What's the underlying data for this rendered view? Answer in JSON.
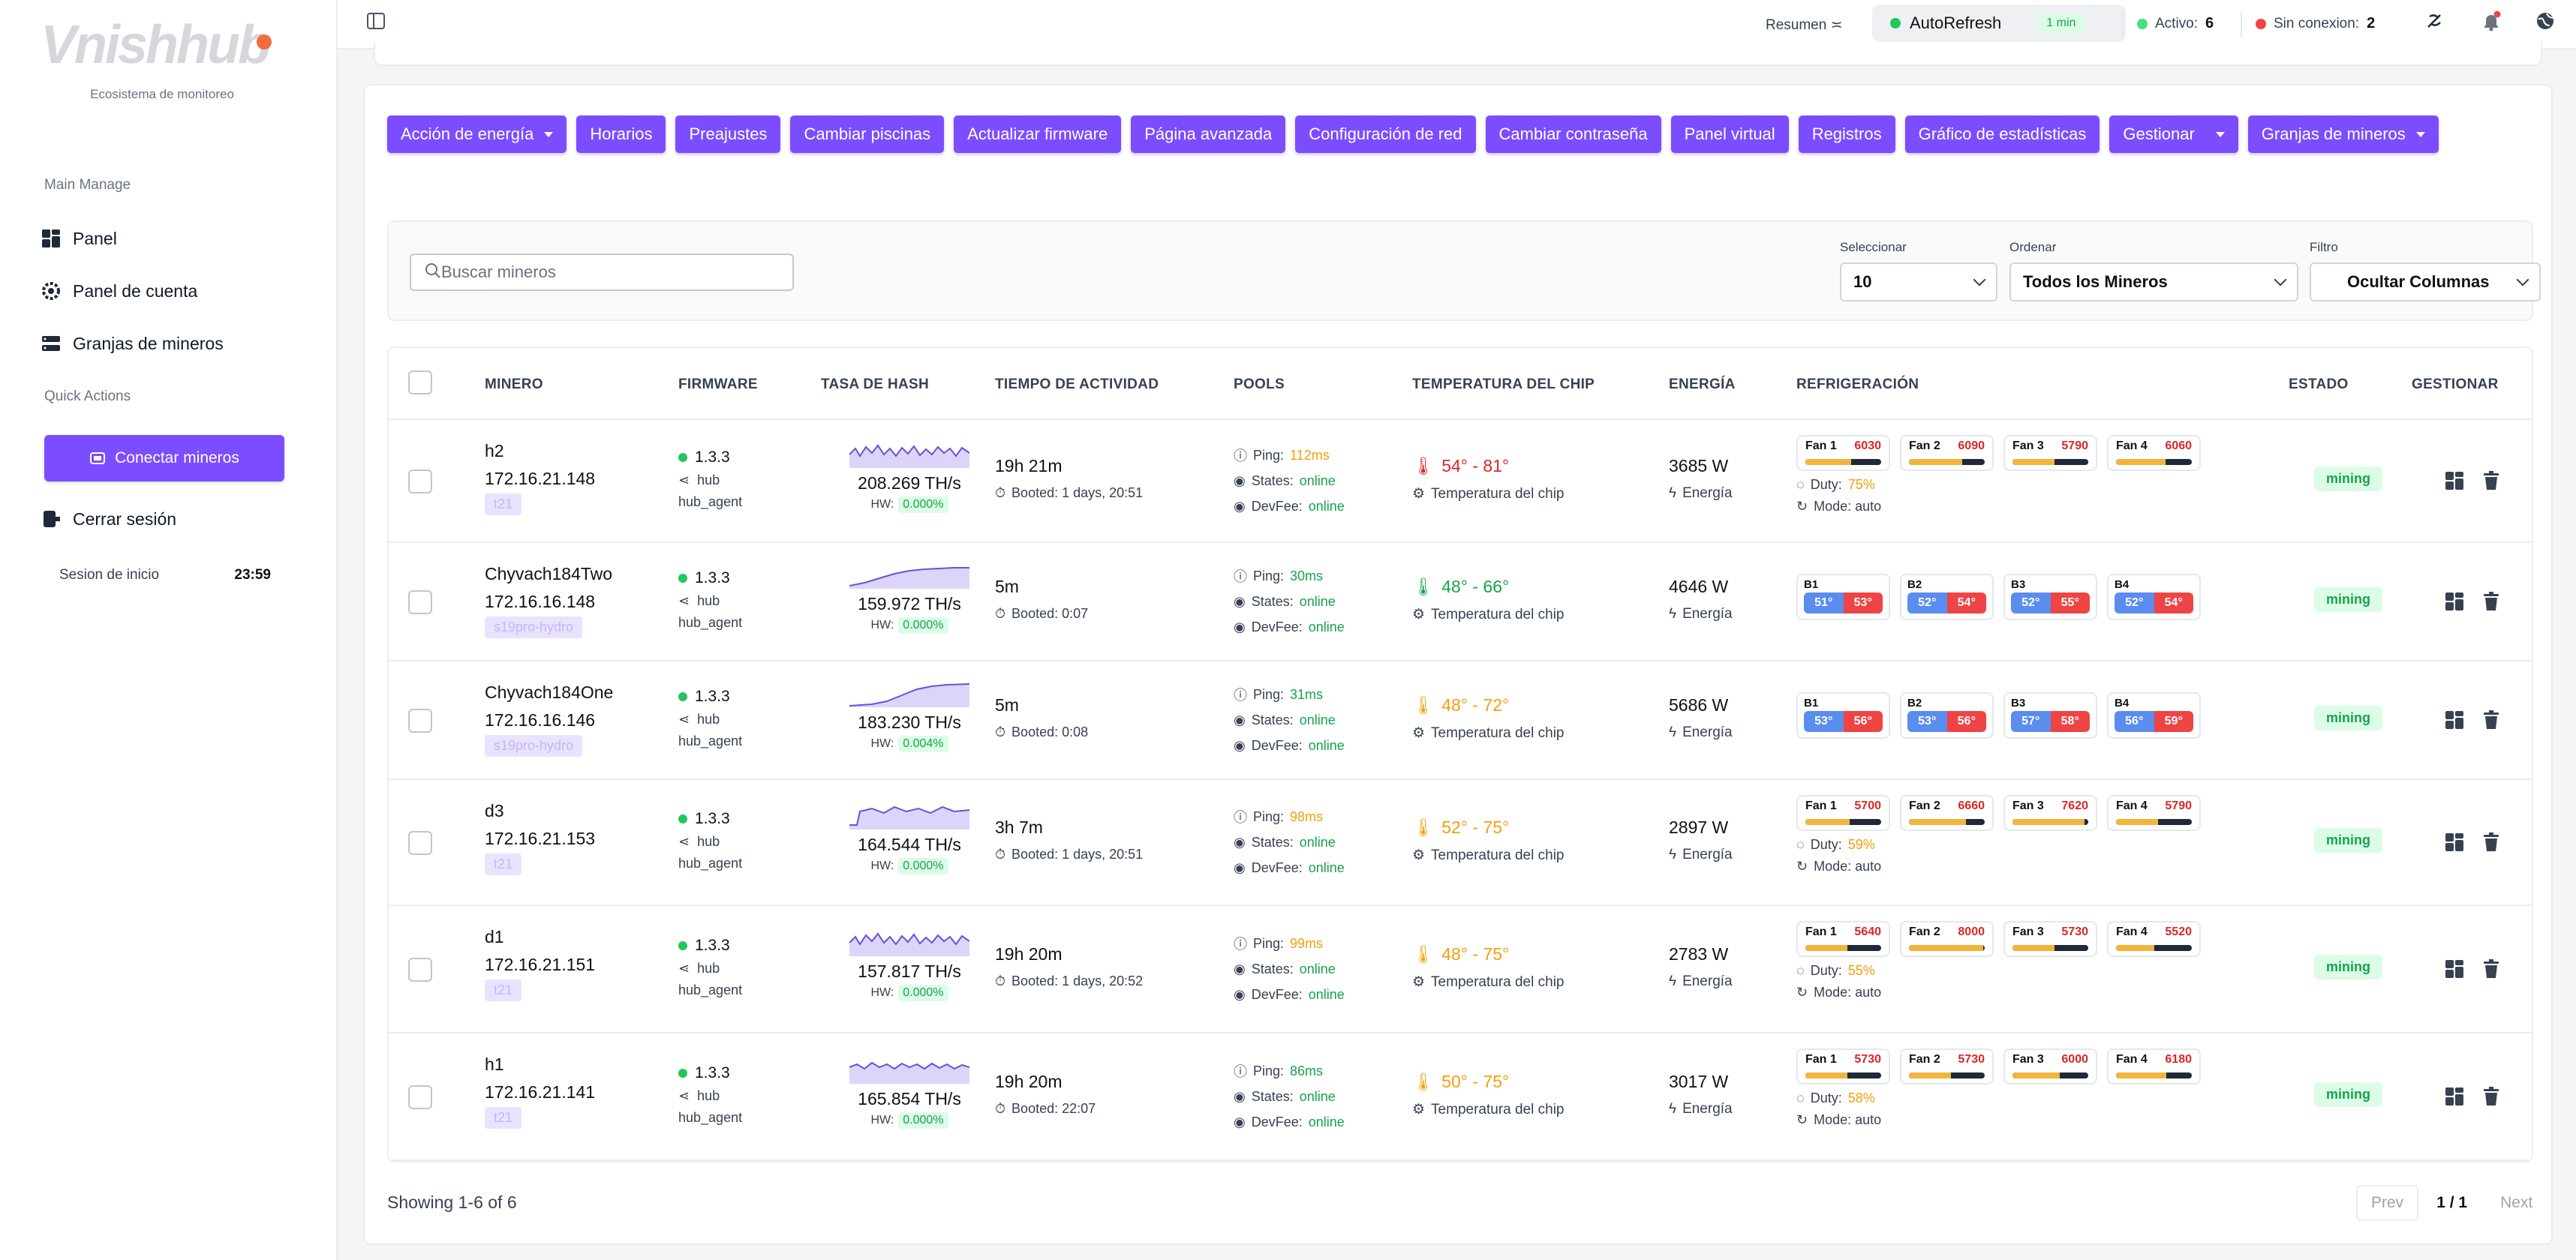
{
  "sidebar": {
    "logo_part1": "Vnish",
    "logo_part2": "hub",
    "tagline": "Ecosistema de monitoreo",
    "section_main": "Main Manage",
    "items": [
      {
        "label": "Panel"
      },
      {
        "label": "Panel de cuenta"
      },
      {
        "label": "Granjas de mineros"
      }
    ],
    "section_quick": "Quick Actions",
    "connect_label": "Conectar mineros",
    "logout_label": "Cerrar sesión",
    "session_label": "Sesion de inicio",
    "session_time": "23:59"
  },
  "topbar": {
    "resumen": "Resumen",
    "autorefresh_label": "AutoRefresh",
    "autorefresh_interval": "1 min",
    "active_label": "Activo:",
    "active_count": "6",
    "offline_label": "Sin conexion:",
    "offline_count": "2"
  },
  "actions": [
    {
      "label": "Acción de energía",
      "dropdown": true
    },
    {
      "label": "Horarios"
    },
    {
      "label": "Preajustes"
    },
    {
      "label": "Cambiar piscinas"
    },
    {
      "label": "Actualizar firmware"
    },
    {
      "label": "Página avanzada"
    },
    {
      "label": "Configuración de red"
    },
    {
      "label": "Cambiar contraseña"
    },
    {
      "label": "Panel virtual"
    },
    {
      "label": "Registros"
    },
    {
      "label": "Gráfico de estadísticas"
    },
    {
      "label": "Gestionar",
      "dropdown": true
    },
    {
      "label": "Granjas de mineros",
      "dropdown": true
    }
  ],
  "filters": {
    "search_placeholder": "Buscar mineros",
    "select_label": "Seleccionar",
    "select_value": "10",
    "order_label": "Ordenar",
    "order_value": "Todos los Mineros",
    "filter_label": "Filtro",
    "filter_value": "Ocultar Columnas"
  },
  "columns": [
    "MINERO",
    "FIRMWARE",
    "TASA DE HASH",
    "TIEMPO DE ACTIVIDAD",
    "POOLS",
    "TEMPERATURA DEL CHIP",
    "ENERGÍA",
    "REFRIGERACIÓN",
    "ESTADO",
    "GESTIONAR"
  ],
  "labels": {
    "hub": "hub",
    "hub_agent": "hub_agent",
    "hw": "HW:",
    "ping": "Ping:",
    "states": "States:",
    "devfee": "DevFee:",
    "chip_temp": "Temperatura del chip",
    "energy": "Energía",
    "duty": "Duty:",
    "mode": "Mode: auto"
  },
  "miners": [
    {
      "name": "h2",
      "ip": "172.16.21.148",
      "tag": "t21",
      "fw": "1.3.3",
      "hashrate": "208.269 TH/s",
      "hw": "0.000%",
      "uptime": "19h 21m",
      "booted": "Booted: 1 days, 20:51",
      "ping": "112ms",
      "ping_color": "#f59e0b",
      "states": "online",
      "devfee": "online",
      "temp": "54° - 81°",
      "temp_color": "#dc2626",
      "power": "3685 W",
      "cooling": "fans",
      "fans": [
        {
          "l": "Fan 1",
          "v": "6030",
          "p": 0.6
        },
        {
          "l": "Fan 2",
          "v": "6090",
          "p": 0.7
        },
        {
          "l": "Fan 3",
          "v": "5790",
          "p": 0.55
        },
        {
          "l": "Fan 4",
          "v": "6060",
          "p": 0.65
        }
      ],
      "duty": "75%",
      "status": "mining",
      "spark": "noisy"
    },
    {
      "name": "Chyvach184Two",
      "ip": "172.16.16.148",
      "tag": "s19pro-hydro",
      "fw": "1.3.3",
      "hashrate": "159.972 TH/s",
      "hw": "0.000%",
      "uptime": "5m",
      "booted": "Booted: 0:07",
      "ping": "30ms",
      "ping_color": "#16a34a",
      "states": "online",
      "devfee": "online",
      "temp": "48° - 66°",
      "temp_color": "#16a34a",
      "power": "4646 W",
      "cooling": "boards",
      "boards": [
        {
          "l": "B1",
          "a": "51°",
          "b": "53°"
        },
        {
          "l": "B2",
          "a": "52°",
          "b": "54°"
        },
        {
          "l": "B3",
          "a": "52°",
          "b": "55°"
        },
        {
          "l": "B4",
          "a": "52°",
          "b": "54°"
        }
      ],
      "status": "mining",
      "spark": "rise"
    },
    {
      "name": "Chyvach184One",
      "ip": "172.16.16.146",
      "tag": "s19pro-hydro",
      "fw": "1.3.3",
      "hashrate": "183.230 TH/s",
      "hw": "0.004%",
      "uptime": "5m",
      "booted": "Booted: 0:08",
      "ping": "31ms",
      "ping_color": "#16a34a",
      "states": "online",
      "devfee": "online",
      "temp": "48° - 72°",
      "temp_color": "#f59e0b",
      "power": "5686 W",
      "cooling": "boards",
      "boards": [
        {
          "l": "B1",
          "a": "53°",
          "b": "56°"
        },
        {
          "l": "B2",
          "a": "53°",
          "b": "56°"
        },
        {
          "l": "B3",
          "a": "57°",
          "b": "58°"
        },
        {
          "l": "B4",
          "a": "56°",
          "b": "59°"
        }
      ],
      "status": "mining",
      "spark": "rise2"
    },
    {
      "name": "d3",
      "ip": "172.16.21.153",
      "tag": "t21",
      "fw": "1.3.3",
      "hashrate": "164.544 TH/s",
      "hw": "0.000%",
      "uptime": "3h 7m",
      "booted": "Booted: 1 days, 20:51",
      "ping": "98ms",
      "ping_color": "#f59e0b",
      "states": "online",
      "devfee": "online",
      "temp": "52° - 75°",
      "temp_color": "#f59e0b",
      "power": "2897 W",
      "cooling": "fans",
      "fans": [
        {
          "l": "Fan 1",
          "v": "5700",
          "p": 0.58
        },
        {
          "l": "Fan 2",
          "v": "6660",
          "p": 0.75
        },
        {
          "l": "Fan 3",
          "v": "7620",
          "p": 0.95
        },
        {
          "l": "Fan 4",
          "v": "5790",
          "p": 0.55
        }
      ],
      "duty": "59%",
      "status": "mining",
      "spark": "step"
    },
    {
      "name": "d1",
      "ip": "172.16.21.151",
      "tag": "t21",
      "fw": "1.3.3",
      "hashrate": "157.817 TH/s",
      "hw": "0.000%",
      "uptime": "19h 20m",
      "booted": "Booted: 1 days, 20:52",
      "ping": "99ms",
      "ping_color": "#f59e0b",
      "states": "online",
      "devfee": "online",
      "temp": "48° - 75°",
      "temp_color": "#f59e0b",
      "power": "2783 W",
      "cooling": "fans",
      "fans": [
        {
          "l": "Fan 1",
          "v": "5640",
          "p": 0.55
        },
        {
          "l": "Fan 2",
          "v": "8000",
          "p": 0.98
        },
        {
          "l": "Fan 3",
          "v": "5730",
          "p": 0.55
        },
        {
          "l": "Fan 4",
          "v": "5520",
          "p": 0.5
        }
      ],
      "duty": "55%",
      "status": "mining",
      "spark": "noisy"
    },
    {
      "name": "h1",
      "ip": "172.16.21.141",
      "tag": "t21",
      "fw": "1.3.3",
      "hashrate": "165.854 TH/s",
      "hw": "0.000%",
      "uptime": "19h 20m",
      "booted": "Booted: 22:07",
      "ping": "86ms",
      "ping_color": "#16a34a",
      "states": "online",
      "devfee": "online",
      "temp": "50° - 75°",
      "temp_color": "#f59e0b",
      "power": "3017 W",
      "cooling": "fans",
      "fans": [
        {
          "l": "Fan 1",
          "v": "5730",
          "p": 0.55
        },
        {
          "l": "Fan 2",
          "v": "5730",
          "p": 0.55
        },
        {
          "l": "Fan 3",
          "v": "6000",
          "p": 0.62
        },
        {
          "l": "Fan 4",
          "v": "6180",
          "p": 0.66
        }
      ],
      "duty": "58%",
      "status": "mining",
      "spark": "flat"
    }
  ],
  "footer": {
    "showing": "Showing 1-6 of 6",
    "prev": "Prev",
    "page": "1 / 1",
    "next": "Next"
  },
  "colors": {
    "accent": "#7c4dff",
    "success": "#16a34a",
    "warning": "#f59e0b",
    "danger": "#dc2626"
  }
}
